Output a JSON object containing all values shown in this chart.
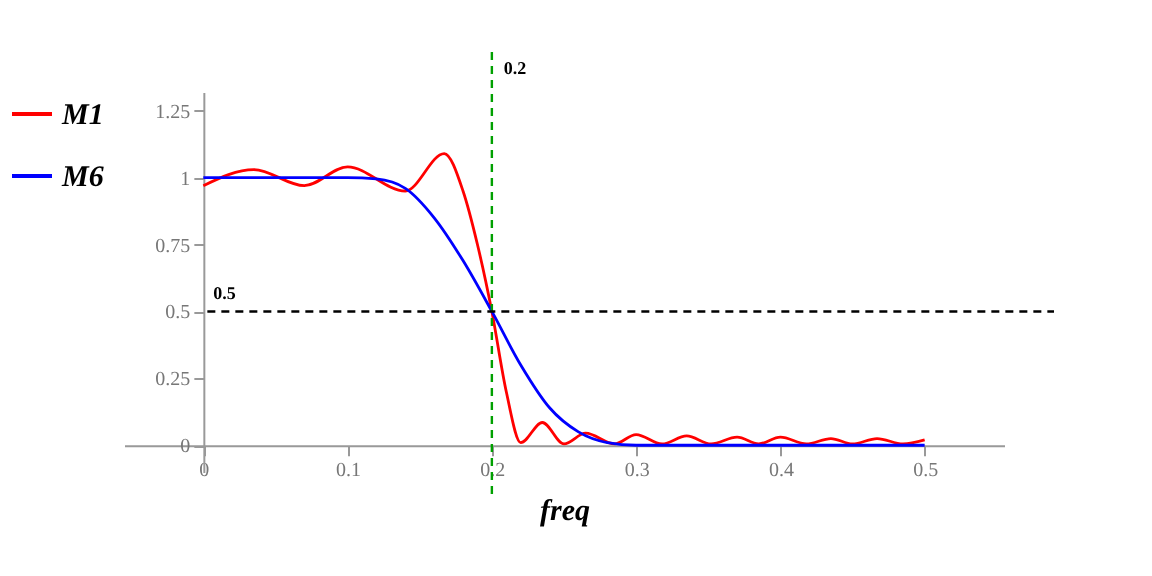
{
  "chart_data": {
    "type": "line",
    "xlabel": "freq",
    "legend": "left",
    "grid": false,
    "xlim": [
      -0.055,
      0.555
    ],
    "ylim": [
      -0.1,
      1.32
    ],
    "xticks": [
      0,
      0.1,
      0.2,
      0.3,
      0.4,
      0.5
    ],
    "yticks": [
      0,
      0.25,
      0.5,
      0.75,
      1,
      1.25
    ],
    "series": [
      {
        "name": "M1",
        "color": "#ff0000",
        "x": [
          0,
          0.035,
          0.07,
          0.1,
          0.14,
          0.167,
          0.18,
          0.19,
          0.2,
          0.21,
          0.22,
          0.235,
          0.25,
          0.265,
          0.285,
          0.3,
          0.318,
          0.335,
          0.352,
          0.37,
          0.385,
          0.4,
          0.418,
          0.435,
          0.45,
          0.467,
          0.485,
          0.5
        ],
        "values": [
          0.97,
          1.03,
          0.97,
          1.04,
          0.95,
          1.09,
          0.95,
          0.75,
          0.5,
          0.2,
          0.01,
          0.085,
          0.005,
          0.045,
          0.005,
          0.04,
          0.005,
          0.035,
          0.005,
          0.03,
          0.005,
          0.03,
          0.005,
          0.025,
          0.005,
          0.025,
          0.005,
          0.02
        ]
      },
      {
        "name": "M6",
        "color": "#0000ff",
        "x": [
          0,
          0.1,
          0.12,
          0.14,
          0.16,
          0.18,
          0.2,
          0.22,
          0.24,
          0.26,
          0.28,
          0.3,
          0.5
        ],
        "values": [
          1,
          1,
          0.995,
          0.96,
          0.85,
          0.69,
          0.5,
          0.3,
          0.14,
          0.05,
          0.01,
          0,
          0
        ]
      }
    ],
    "ref_lines": [
      {
        "axis": "x",
        "value": 0.2,
        "label": "0.2",
        "color": "#00a000",
        "line_style": "dashed"
      },
      {
        "axis": "y",
        "value": 0.5,
        "label": "0.5",
        "color": "#000000",
        "line_style": "dashed"
      }
    ]
  }
}
